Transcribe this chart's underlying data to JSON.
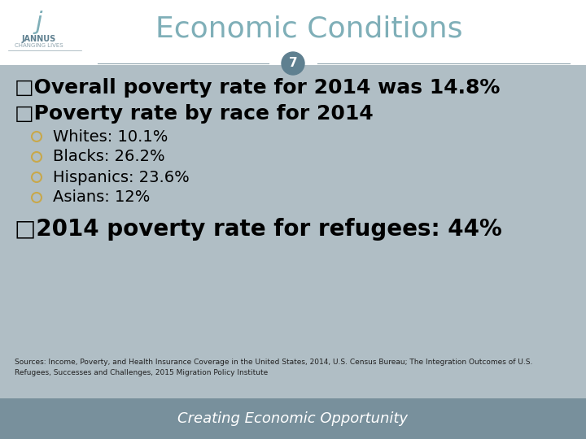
{
  "title": "Economic Conditions",
  "slide_number": "7",
  "bg_color": "#b0bec5",
  "header_bg": "#ffffff",
  "footer_bg": "#78909c",
  "footer_text": "Creating Economic Opportunity",
  "title_color": "#7fafb8",
  "bullet_color": "#000000",
  "sub_bullet_color": "#000000",
  "circle_color": "#c8a84b",
  "slide_number_bg": "#5f8090",
  "slide_number_color": "#ffffff",
  "main_bullets": [
    "□Overall poverty rate for 2014 was 14.8%",
    "□Poverty rate by race for 2014"
  ],
  "sub_bullets": [
    "Whites: 10.1%",
    "Blacks: 26.2%",
    "Hispanics: 23.6%",
    "Asians: 12%"
  ],
  "third_bullet": "□2014 poverty rate for refugees: 44%",
  "source_text": "Sources: Income, Poverty, and Health Insurance Coverage in the United States, 2014, U.S. Census Bureau; The Integration Outcomes of U.S.\nRefugees, Successes and Challenges, 2015 Migration Policy Institute",
  "logo_text": "j",
  "logo_subtext": "JANNUS",
  "logo_subtext2": "CHANGING LIVES"
}
